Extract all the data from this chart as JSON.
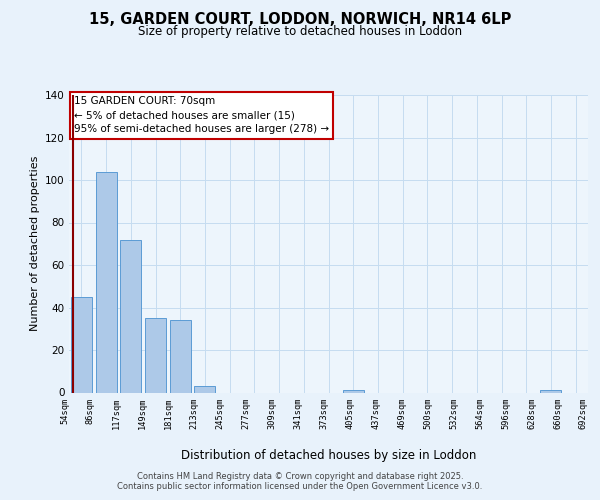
{
  "title1": "15, GARDEN COURT, LODDON, NORWICH, NR14 6LP",
  "title2": "Size of property relative to detached houses in Loddon",
  "xlabel": "Distribution of detached houses by size in Loddon",
  "ylabel": "Number of detached properties",
  "bar_labels": [
    "54sqm",
    "86sqm",
    "117sqm",
    "149sqm",
    "181sqm",
    "213sqm",
    "245sqm",
    "277sqm",
    "309sqm",
    "341sqm",
    "373sqm",
    "405sqm",
    "437sqm",
    "469sqm",
    "500sqm",
    "532sqm",
    "564sqm",
    "596sqm",
    "628sqm",
    "660sqm",
    "692sqm"
  ],
  "bar_values": [
    45,
    104,
    72,
    35,
    34,
    3,
    0,
    0,
    0,
    0,
    0,
    1,
    0,
    0,
    0,
    0,
    0,
    0,
    0,
    1,
    0
  ],
  "bar_color": "#adc9e8",
  "bar_edge_color": "#5b9bd5",
  "ylim": [
    0,
    140
  ],
  "yticks": [
    0,
    20,
    40,
    60,
    80,
    100,
    120,
    140
  ],
  "vline_color": "#8b0000",
  "annotation_title": "15 GARDEN COURT: 70sqm",
  "annotation_line1": "← 5% of detached houses are smaller (15)",
  "annotation_line2": "95% of semi-detached houses are larger (278) →",
  "footnote1": "Contains HM Land Registry data © Crown copyright and database right 2025.",
  "footnote2": "Contains public sector information licensed under the Open Government Licence v3.0.",
  "bg_color": "#e8f2fb",
  "plot_bg_color": "#edf5fc",
  "grid_color": "#c5dcf0"
}
